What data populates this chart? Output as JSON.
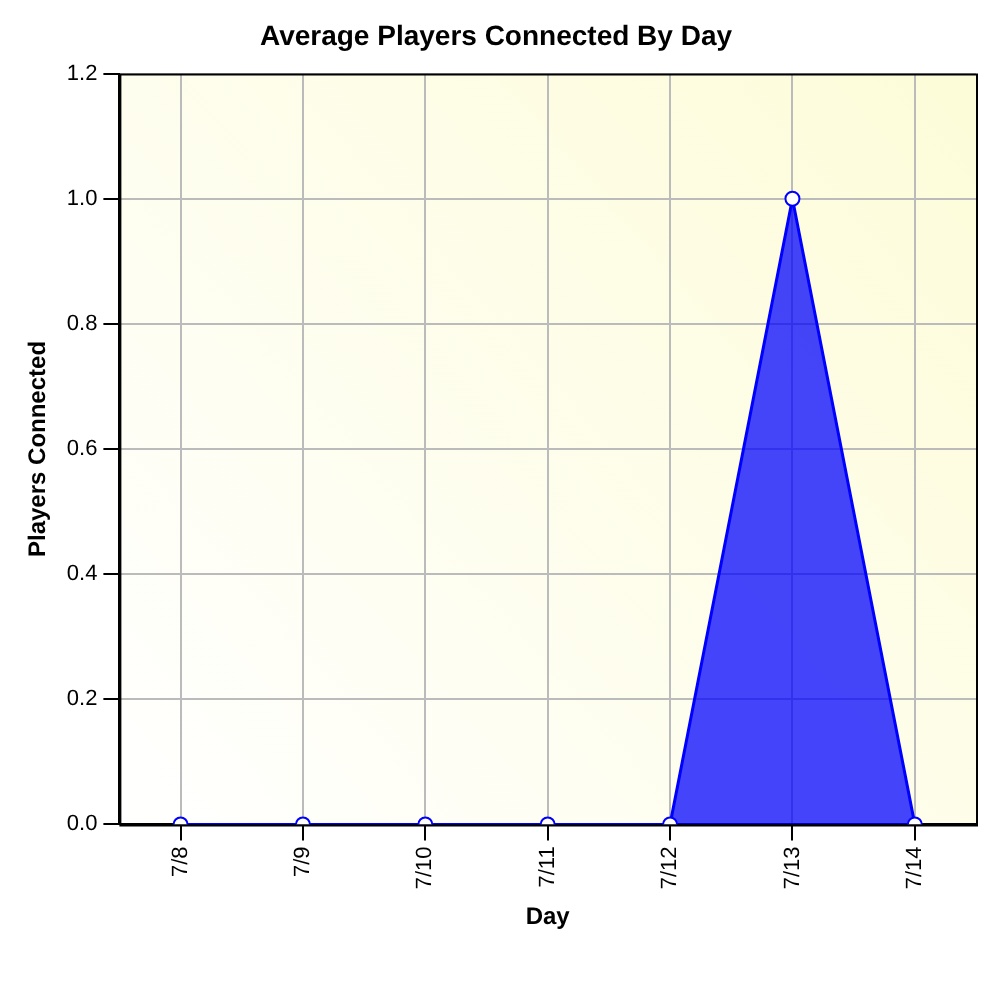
{
  "chart_data": {
    "type": "area",
    "title": "Average Players Connected By Day",
    "xlabel": "Day",
    "ylabel": "Players Connected",
    "categories": [
      "7/8",
      "7/9",
      "7/10",
      "7/11",
      "7/12",
      "7/13",
      "7/14"
    ],
    "series": [
      {
        "color": "#0000ff",
        "values": [
          0,
          0,
          0,
          0,
          0,
          1,
          0
        ]
      }
    ],
    "ylim": [
      0,
      1.2
    ],
    "yticks": [
      {
        "value": 0,
        "label": "0.0"
      },
      {
        "value": 0.2,
        "label": "0.2"
      },
      {
        "value": 0.4,
        "label": "0.4"
      },
      {
        "value": 0.6,
        "label": "0.6"
      },
      {
        "value": 0.8,
        "label": "0.8"
      },
      {
        "value": 1,
        "label": "1.0"
      },
      {
        "value": 1.2,
        "label": "1.2"
      }
    ],
    "grid": true,
    "marker": "circle",
    "line_style": "solid",
    "legend": false
  }
}
